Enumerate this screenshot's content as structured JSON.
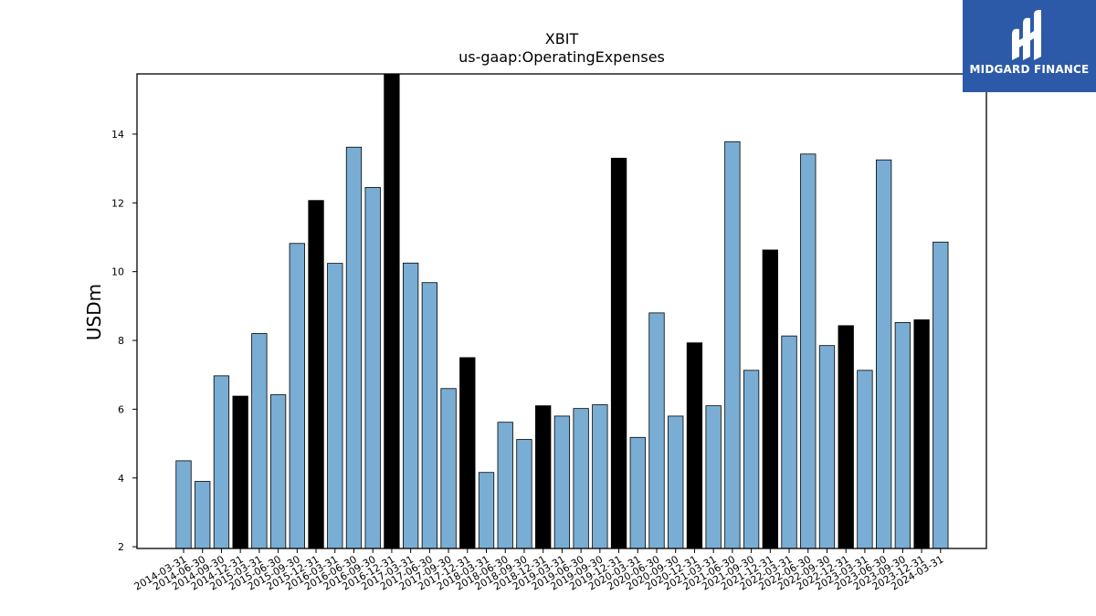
{
  "chart_data": {
    "type": "bar",
    "title": "XBIT",
    "subtitle": "us-gaap:OperatingExpenses",
    "ylabel": "USDm",
    "xlabel": "",
    "ylim": [
      1.95,
      15.75
    ],
    "yticks": [
      2,
      4,
      6,
      8,
      10,
      12,
      14
    ],
    "grid": false,
    "colors": {
      "normal": "#7aadd3",
      "highlight": "#000000",
      "edge": "#000000"
    },
    "categories": [
      "2014-03-31",
      "2014-06-30",
      "2014-09-30",
      "2014-12-31",
      "2015-03-31",
      "2015-06-30",
      "2015-09-30",
      "2015-12-31",
      "2016-03-31",
      "2016-06-30",
      "2016-09-30",
      "2016-12-31",
      "2017-03-31",
      "2017-06-30",
      "2017-09-30",
      "2017-12-31",
      "2018-03-31",
      "2018-06-30",
      "2018-09-30",
      "2018-12-31",
      "2019-03-31",
      "2019-06-30",
      "2019-09-30",
      "2019-12-31",
      "2020-03-31",
      "2020-06-30",
      "2020-09-30",
      "2020-12-31",
      "2021-03-31",
      "2021-06-30",
      "2021-09-30",
      "2021-12-31",
      "2022-03-31",
      "2022-06-30",
      "2022-09-30",
      "2022-12-31",
      "2023-03-31",
      "2023-06-30",
      "2023-09-30",
      "2023-12-31",
      "2024-03-31"
    ],
    "values": [
      4.5,
      3.9,
      6.97,
      6.38,
      8.2,
      6.42,
      10.82,
      12.07,
      10.24,
      13.62,
      12.45,
      15.75,
      10.25,
      9.68,
      6.6,
      7.5,
      4.16,
      5.62,
      5.12,
      6.1,
      5.8,
      6.02,
      6.13,
      13.3,
      5.18,
      8.8,
      5.8,
      7.93,
      6.1,
      13.78,
      7.13,
      10.63,
      8.13,
      13.42,
      7.85,
      8.43,
      7.13,
      13.25,
      8.52,
      8.6,
      10.86
    ],
    "highlighted": [
      false,
      false,
      false,
      true,
      false,
      false,
      false,
      true,
      false,
      false,
      false,
      true,
      false,
      false,
      false,
      true,
      false,
      false,
      false,
      true,
      false,
      false,
      false,
      true,
      false,
      false,
      false,
      true,
      false,
      false,
      false,
      true,
      false,
      false,
      false,
      true,
      false,
      false,
      false,
      true,
      false
    ]
  },
  "logo": {
    "text": "MIDGARD FINANCE",
    "name": "midgard-finance-logo"
  }
}
